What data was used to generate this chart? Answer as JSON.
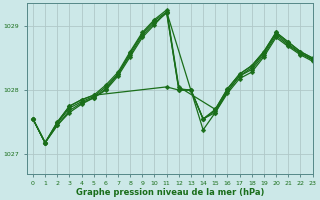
{
  "background_color": "#cce8e8",
  "grid_color": "#b0c8c8",
  "line_color": "#1a6e1a",
  "title": "Graphe pression niveau de la mer (hPa)",
  "xlim": [
    -0.5,
    23
  ],
  "ylim": [
    1026.7,
    1029.35
  ],
  "yticks": [
    1027,
    1028,
    1029
  ],
  "xticks": [
    0,
    1,
    2,
    3,
    4,
    5,
    6,
    7,
    8,
    9,
    10,
    11,
    12,
    13,
    14,
    15,
    16,
    17,
    18,
    19,
    20,
    21,
    22,
    23
  ],
  "series": [
    {
      "x": [
        0,
        1,
        2,
        3,
        4,
        5,
        6,
        7,
        8,
        9,
        10,
        11,
        12,
        13,
        14,
        15,
        16,
        17,
        18,
        19,
        20,
        21,
        22,
        23
      ],
      "y": [
        1027.55,
        1027.18,
        1027.45,
        1027.65,
        1027.78,
        1027.88,
        1028.0,
        1028.22,
        1028.52,
        1028.82,
        1029.02,
        1029.22,
        1028.0,
        1028.0,
        1027.55,
        1027.65,
        1027.95,
        1028.18,
        1028.28,
        1028.52,
        1028.82,
        1028.68,
        1028.55,
        1028.45
      ]
    },
    {
      "x": [
        0,
        1,
        2,
        3,
        4,
        5,
        6,
        7,
        8,
        9,
        10,
        11,
        14,
        15,
        16,
        17,
        18,
        19,
        20,
        21,
        22,
        23
      ],
      "y": [
        1027.55,
        1027.18,
        1027.48,
        1027.72,
        1027.82,
        1027.9,
        1028.05,
        1028.25,
        1028.58,
        1028.88,
        1029.08,
        1029.22,
        1027.38,
        1027.65,
        1027.98,
        1028.22,
        1028.35,
        1028.58,
        1028.88,
        1028.72,
        1028.58,
        1028.48
      ]
    },
    {
      "x": [
        0,
        1,
        2,
        3,
        4,
        5,
        6,
        7,
        8,
        9,
        10,
        11,
        12,
        13,
        14,
        15,
        16,
        17,
        18,
        19,
        20,
        21,
        22,
        23
      ],
      "y": [
        1027.55,
        1027.18,
        1027.45,
        1027.68,
        1027.8,
        1027.88,
        1028.02,
        1028.25,
        1028.55,
        1028.85,
        1029.05,
        1029.2,
        1028.02,
        1028.0,
        1027.55,
        1027.68,
        1027.98,
        1028.22,
        1028.32,
        1028.55,
        1028.85,
        1028.7,
        1028.57,
        1028.47
      ]
    },
    {
      "x": [
        0,
        1,
        2,
        3,
        4,
        5,
        6,
        7,
        8,
        9,
        10,
        11,
        12,
        15,
        16,
        17,
        18,
        19,
        20,
        21,
        22,
        23
      ],
      "y": [
        1027.55,
        1027.18,
        1027.5,
        1027.75,
        1027.85,
        1027.92,
        1028.08,
        1028.28,
        1028.6,
        1028.9,
        1029.1,
        1029.25,
        1028.05,
        1027.7,
        1028.02,
        1028.25,
        1028.38,
        1028.6,
        1028.9,
        1028.75,
        1028.6,
        1028.5
      ]
    },
    {
      "x": [
        0,
        1,
        2,
        3,
        4,
        5,
        11,
        12,
        13,
        14,
        15,
        16,
        17,
        18,
        19,
        20,
        21,
        22,
        23
      ],
      "y": [
        1027.55,
        1027.18,
        1027.5,
        1027.75,
        1027.85,
        1027.92,
        1028.05,
        1028.0,
        1028.0,
        1027.55,
        1027.7,
        1028.02,
        1028.25,
        1028.38,
        1028.6,
        1028.9,
        1028.75,
        1028.6,
        1028.5
      ]
    }
  ]
}
